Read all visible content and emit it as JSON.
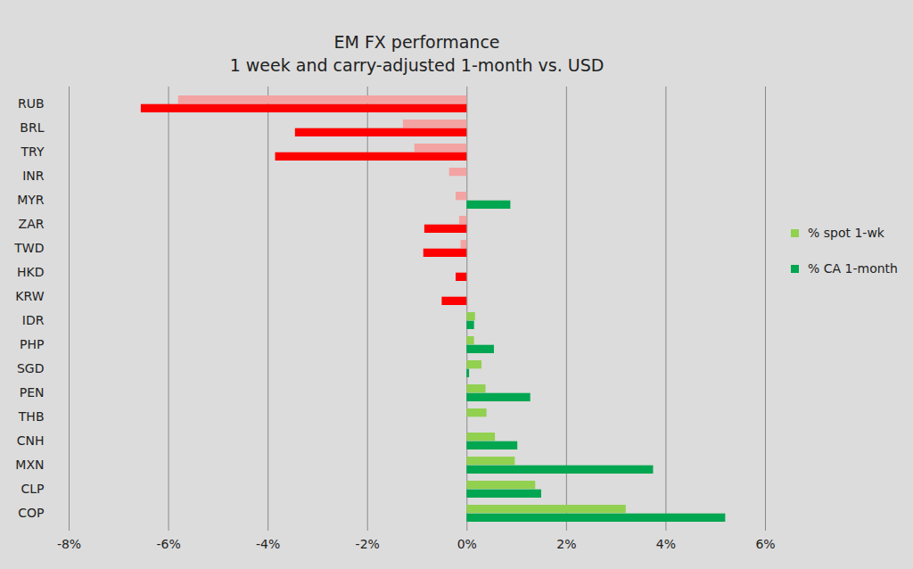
{
  "chart_data": {
    "type": "bar",
    "orientation": "horizontal",
    "title": "EM FX performance",
    "subtitle": "1 week and carry-adjusted 1-month vs. USD",
    "categories": [
      "RUB",
      "BRL",
      "TRY",
      "INR",
      "MYR",
      "ZAR",
      "TWD",
      "HKD",
      "KRW",
      "IDR",
      "PHP",
      "SGD",
      "PEN",
      "THB",
      "CNH",
      "MXN",
      "CLP",
      "COP"
    ],
    "series": [
      {
        "name": "% spot 1-wk",
        "color": "#92d050",
        "values": [
          -5.8,
          -1.28,
          -1.05,
          -0.35,
          -0.22,
          -0.15,
          -0.12,
          0,
          0,
          0.17,
          0.15,
          0.3,
          0.38,
          0.4,
          0.57,
          0.97,
          1.38,
          3.2
        ],
        "colors": [
          "#f4a3a3",
          "#f4a3a3",
          "#f4a3a3",
          "#f4a3a3",
          "#f4a3a3",
          "#f4a3a3",
          "#f4a3a3",
          "#92d050",
          "#92d050",
          "#92d050",
          "#92d050",
          "#92d050",
          "#92d050",
          "#92d050",
          "#92d050",
          "#92d050",
          "#92d050",
          "#92d050"
        ]
      },
      {
        "name": "% CA 1-month",
        "color": "#00a650",
        "values": [
          -6.55,
          -3.45,
          -3.85,
          0,
          0.88,
          -0.85,
          -0.87,
          -0.22,
          -0.5,
          0.15,
          0.55,
          0.05,
          1.28,
          0,
          1.02,
          3.75,
          1.5,
          5.2
        ],
        "colors": [
          "#ff0000",
          "#ff0000",
          "#ff0000",
          "#00a650",
          "#00a650",
          "#ff0000",
          "#ff0000",
          "#ff0000",
          "#ff0000",
          "#00a650",
          "#00a650",
          "#00a650",
          "#00a650",
          "#00a650",
          "#00a650",
          "#00a650",
          "#00a650",
          "#00a650"
        ]
      }
    ],
    "xlim": [
      -8,
      6
    ],
    "xticks": [
      {
        "value": -8,
        "label": "-8%"
      },
      {
        "value": -6,
        "label": "-6%"
      },
      {
        "value": -4,
        "label": "-4%"
      },
      {
        "value": -2,
        "label": "-2%"
      },
      {
        "value": 0,
        "label": "0%"
      },
      {
        "value": 2,
        "label": "2%"
      },
      {
        "value": 4,
        "label": "4%"
      },
      {
        "value": 6,
        "label": "6%"
      }
    ],
    "grid": true,
    "legend": "right"
  }
}
